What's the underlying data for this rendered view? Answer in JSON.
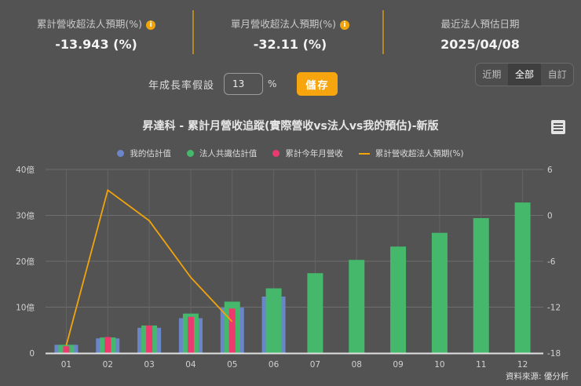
{
  "stats": [
    {
      "label": "累計營收超法人預期(%)",
      "value": "-13.943 (%)",
      "has_info": true
    },
    {
      "label": "單月營收超法人預期(%)",
      "value": "-32.11 (%)",
      "has_info": true
    },
    {
      "label": "最近法人預估日期",
      "value": "2025/04/08",
      "has_info": false
    }
  ],
  "growth": {
    "label": "年成長率假設",
    "value": "13",
    "unit": "%",
    "save_label": "儲存"
  },
  "range_tabs": [
    {
      "label": "近期",
      "active": false
    },
    {
      "label": "全部",
      "active": true
    },
    {
      "label": "自訂",
      "active": false
    }
  ],
  "colors": {
    "mine": "#6b86c8",
    "consensus": "#45b86c",
    "actual": "#ec3a6f",
    "line": "#f2a40c",
    "accent": "#f7a50e"
  },
  "credit": "資料來源: 優分析",
  "chart_data": {
    "type": "bar",
    "title": "昇達科 - 累計月營收追蹤(實際營收vs法人vs我的預估)-新版",
    "categories": [
      "01",
      "02",
      "03",
      "04",
      "05",
      "06",
      "07",
      "08",
      "09",
      "10",
      "11",
      "12"
    ],
    "series": [
      {
        "name": "我的估計值",
        "type": "bar",
        "axis": "left",
        "unit": "億",
        "values": [
          1.8,
          3.2,
          5.5,
          7.6,
          9.9,
          12.3,
          null,
          null,
          null,
          null,
          null,
          null
        ]
      },
      {
        "name": "法人共識估計值",
        "type": "bar",
        "axis": "left",
        "unit": "億",
        "values": [
          1.8,
          3.4,
          6.0,
          8.6,
          11.2,
          14.1,
          17.4,
          20.3,
          23.2,
          26.2,
          29.4,
          32.8
        ]
      },
      {
        "name": "累計今年月營收",
        "type": "bar",
        "axis": "left",
        "unit": "億",
        "values": [
          1.5,
          3.5,
          6.0,
          7.9,
          9.7,
          null,
          null,
          null,
          null,
          null,
          null,
          null
        ]
      },
      {
        "name": "累計營收超法人預期(%)",
        "type": "line",
        "axis": "right",
        "unit": "%",
        "values": [
          -17.0,
          3.3,
          -0.7,
          -8.1,
          -13.9,
          null,
          null,
          null,
          null,
          null,
          null,
          null
        ]
      }
    ],
    "left_axis": {
      "ticks": [
        "0",
        "10億",
        "20億",
        "30億",
        "40億"
      ],
      "range": [
        0,
        40
      ]
    },
    "right_axis": {
      "ticks": [
        "-18",
        "-12",
        "-6",
        "0",
        "6"
      ],
      "range": [
        -18,
        6
      ]
    },
    "xlabel": "",
    "ylabel": "",
    "grid": true,
    "legend_position": "top"
  }
}
